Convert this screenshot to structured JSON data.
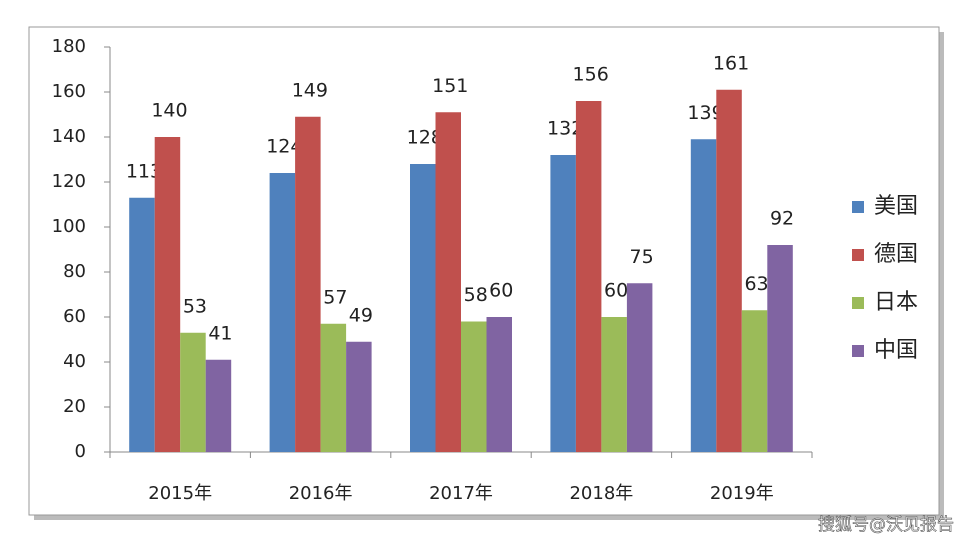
{
  "chart_data": {
    "type": "bar",
    "categories": [
      "2015年",
      "2016年",
      "2017年",
      "2018年",
      "2019年"
    ],
    "series": [
      {
        "name": "美国",
        "color": "#4f81bd",
        "values": [
          113,
          124,
          128,
          132,
          139
        ]
      },
      {
        "name": "德国",
        "color": "#c0504d",
        "values": [
          140,
          149,
          151,
          156,
          161
        ]
      },
      {
        "name": "日本",
        "color": "#9bbb59",
        "values": [
          53,
          57,
          58,
          60,
          63
        ]
      },
      {
        "name": "中国",
        "color": "#8064a2",
        "values": [
          41,
          49,
          60,
          75,
          92
        ]
      }
    ],
    "ylim": [
      0,
      180
    ],
    "yticks": [
      0,
      20,
      40,
      60,
      80,
      100,
      120,
      140,
      160,
      180
    ],
    "grid": false,
    "legend": "right",
    "watermark": "搜狐号@沃见报告"
  }
}
